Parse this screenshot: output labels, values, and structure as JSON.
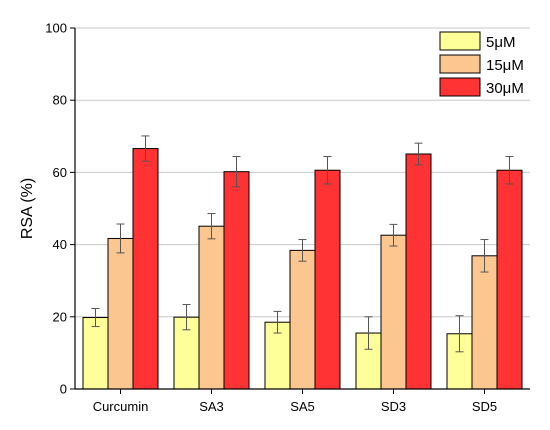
{
  "chart_data": {
    "type": "bar",
    "categories": [
      "Curcumin",
      "SA3",
      "SA5",
      "SD3",
      "SD5"
    ],
    "series": [
      {
        "name": "5μM",
        "color": "#ffff99",
        "values": [
          19.8,
          19.9,
          18.5,
          15.5,
          15.3
        ],
        "errors": [
          2.5,
          3.5,
          3.0,
          4.5,
          5.0
        ]
      },
      {
        "name": "15μM",
        "color": "#fcc691",
        "values": [
          41.7,
          45.1,
          38.4,
          42.6,
          36.9
        ],
        "errors": [
          4.0,
          3.5,
          3.0,
          3.0,
          4.5
        ]
      },
      {
        "name": "30μM",
        "color": "#ff3333",
        "values": [
          66.6,
          60.2,
          60.6,
          65.1,
          60.6
        ],
        "errors": [
          3.5,
          4.2,
          3.8,
          3.0,
          3.8
        ]
      }
    ],
    "title": "",
    "xlabel": "",
    "ylabel": "RSA (%)",
    "ylim": [
      0,
      100
    ],
    "yticks": [
      0,
      20,
      40,
      60,
      80,
      100
    ],
    "grid": "horizontal",
    "legend": "top-right"
  }
}
